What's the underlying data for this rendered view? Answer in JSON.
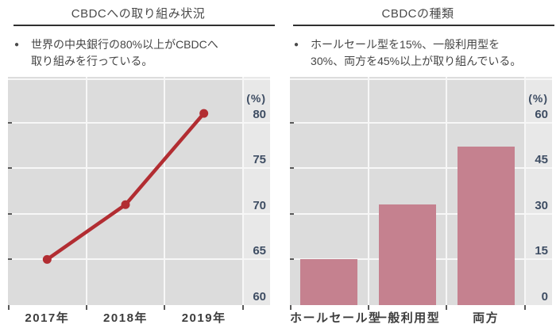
{
  "panels": [
    {
      "title": "CBDCへの取り組み状況",
      "bullet_glyph": "●",
      "bullet_lines": [
        "世界の中央銀行の80%以上がCBDCへ",
        "取り組みを行っている。"
      ]
    },
    {
      "title": "CBDCの種類",
      "bullet_glyph": "●",
      "bullet_lines": [
        "ホールセール型を15%、一般利用型を",
        "30%、両方を45%以上が取り組んでいる。"
      ]
    }
  ],
  "chart_data": [
    {
      "type": "line",
      "title": "CBDCへの取り組み状況",
      "categories": [
        "2017年",
        "2018年",
        "2019年"
      ],
      "values": [
        65,
        71,
        81
      ],
      "unit_label": "(%)",
      "xlabel": "",
      "ylabel": "(%)",
      "ylim": [
        60,
        85
      ],
      "yticks": [
        60,
        65,
        70,
        75,
        80
      ],
      "grid": true,
      "legend": "none",
      "line_color": "#b22d32",
      "plot_bg": "#dcdcdc"
    },
    {
      "type": "bar",
      "title": "CBDCの種類",
      "categories": [
        "ホールセール型",
        "一般利用型",
        "両方"
      ],
      "values": [
        15,
        33,
        52
      ],
      "unit_label": "(%)",
      "xlabel": "",
      "ylabel": "(%)",
      "ylim": [
        0,
        75
      ],
      "yticks": [
        0,
        15,
        30,
        45,
        60
      ],
      "grid": true,
      "legend": "none",
      "bar_color": "#c5818f",
      "plot_bg": "#dcdcdc"
    }
  ],
  "colors": {
    "axis_number": "#3e4d63",
    "axis_category": "#3d3d3d",
    "body_text": "#454545",
    "underline": "#2f2f2f",
    "plot_bg": "#dcdcdc",
    "label_column_bg": "#e8e8e8",
    "gridline": "#f7f7f7",
    "line_series": "#b22d32",
    "bar_series": "#c5818f"
  }
}
